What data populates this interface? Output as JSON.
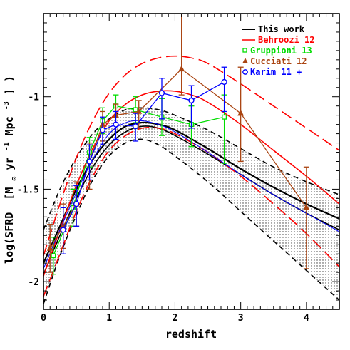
{
  "chart_data": {
    "type": "line",
    "title": "",
    "xlabel": "redshift",
    "ylabel_main": "log(SFRD",
    "ylabel_unit_open": "[M",
    "ylabel_unit_mid": "yr",
    "ylabel_unit_exp1": "-1",
    "ylabel_unit_mpc": " Mpc",
    "ylabel_unit_exp2": "-3",
    "ylabel_unit_close": "] )",
    "xlim": [
      0,
      4.5
    ],
    "ylim": [
      -2.15,
      -0.55
    ],
    "x_ticks": [
      0,
      1,
      2,
      3,
      4
    ],
    "x_tick_labels": [
      "0",
      "1",
      "2",
      "3",
      "4"
    ],
    "y_ticks": [
      -2,
      -1.5,
      -1
    ],
    "y_tick_labels": [
      "-2",
      "-1.5",
      "-1"
    ],
    "legend_position": "top-right",
    "legend": [
      {
        "label": "This work",
        "color": "#000000",
        "marker": "line"
      },
      {
        "label": "Behroozi 12",
        "color": "#ff0000",
        "marker": "dashed-line"
      },
      {
        "label": "Gruppioni 13",
        "color": "#00dd00",
        "marker": "square"
      },
      {
        "label": "Cucciati 12",
        "color": "#aa4411",
        "marker": "triangle"
      },
      {
        "label": "Karim 11 +",
        "color": "#0000ff",
        "marker": "circle"
      }
    ],
    "bands": {
      "this_work_upper": {
        "x": [
          0,
          0.25,
          0.5,
          0.75,
          1.0,
          1.25,
          1.5,
          1.75,
          2.0,
          2.5,
          3.0,
          3.5,
          4.0,
          4.5
        ],
        "y": [
          -1.72,
          -1.5,
          -1.33,
          -1.2,
          -1.12,
          -1.07,
          -1.06,
          -1.07,
          -1.1,
          -1.18,
          -1.28,
          -1.38,
          -1.46,
          -1.53
        ]
      },
      "this_work_lower": {
        "x": [
          0,
          0.25,
          0.5,
          0.75,
          1.0,
          1.25,
          1.5,
          1.75,
          2.0,
          2.5,
          3.0,
          3.5,
          4.0,
          4.5
        ],
        "y": [
          -2.12,
          -1.86,
          -1.64,
          -1.45,
          -1.32,
          -1.25,
          -1.23,
          -1.26,
          -1.32,
          -1.46,
          -1.62,
          -1.78,
          -1.94,
          -2.1
        ]
      }
    },
    "series": [
      {
        "style": "this_work_solid",
        "color": "#000000",
        "dash": "",
        "width": 2.2,
        "x": [
          0,
          0.25,
          0.5,
          0.75,
          1.0,
          1.25,
          1.5,
          1.75,
          2.0,
          2.5,
          3.0,
          3.5,
          4.0,
          4.5
        ],
        "y": [
          -1.9,
          -1.7,
          -1.5,
          -1.34,
          -1.23,
          -1.16,
          -1.14,
          -1.15,
          -1.18,
          -1.28,
          -1.39,
          -1.49,
          -1.58,
          -1.66
        ]
      },
      {
        "style": "this_work_lower_solid",
        "color": "#000000",
        "dash": "",
        "width": 1.6,
        "x": [
          0,
          0.25,
          0.5,
          0.75,
          1.0,
          1.25,
          1.5,
          1.75,
          2.0,
          2.5,
          3.0,
          3.5,
          4.0,
          4.5
        ],
        "y": [
          -1.96,
          -1.75,
          -1.55,
          -1.38,
          -1.26,
          -1.19,
          -1.16,
          -1.17,
          -1.21,
          -1.31,
          -1.42,
          -1.53,
          -1.63,
          -1.72
        ]
      },
      {
        "style": "this_work_upper_dashed",
        "color": "#000000",
        "dash": "7,5",
        "width": 1.6,
        "x": [
          0,
          0.25,
          0.5,
          0.75,
          1.0,
          1.25,
          1.5,
          1.75,
          2.0,
          2.5,
          3.0,
          3.5,
          4.0,
          4.5
        ],
        "y": [
          -1.72,
          -1.5,
          -1.33,
          -1.2,
          -1.12,
          -1.07,
          -1.06,
          -1.07,
          -1.1,
          -1.18,
          -1.28,
          -1.38,
          -1.46,
          -1.53
        ]
      },
      {
        "style": "this_work_lower_dashed",
        "color": "#000000",
        "dash": "7,5",
        "width": 1.6,
        "x": [
          0,
          0.25,
          0.5,
          0.75,
          1.0,
          1.25,
          1.5,
          1.75,
          2.0,
          2.5,
          3.0,
          3.5,
          4.0,
          4.5
        ],
        "y": [
          -2.12,
          -1.86,
          -1.64,
          -1.45,
          -1.32,
          -1.25,
          -1.23,
          -1.26,
          -1.32,
          -1.46,
          -1.62,
          -1.78,
          -1.94,
          -2.1
        ]
      },
      {
        "style": "behroozi_best",
        "color": "#ff0000",
        "dash": "",
        "width": 1.6,
        "x": [
          0,
          0.25,
          0.5,
          0.75,
          1.0,
          1.25,
          1.5,
          1.75,
          2.0,
          2.25,
          2.5,
          3.0,
          3.5,
          4.0,
          4.5
        ],
        "y": [
          -1.97,
          -1.72,
          -1.48,
          -1.28,
          -1.13,
          -1.04,
          -0.99,
          -0.97,
          -0.97,
          -0.99,
          -1.03,
          -1.15,
          -1.29,
          -1.43,
          -1.58
        ]
      },
      {
        "style": "behroozi_upper",
        "color": "#ff0000",
        "dash": "16,7",
        "width": 1.6,
        "x": [
          0,
          0.25,
          0.5,
          0.75,
          1.0,
          1.25,
          1.5,
          1.75,
          2.0,
          2.25,
          2.5,
          3.0,
          3.5,
          4.0,
          4.5
        ],
        "y": [
          -1.86,
          -1.58,
          -1.33,
          -1.13,
          -0.98,
          -0.88,
          -0.82,
          -0.79,
          -0.78,
          -0.79,
          -0.82,
          -0.93,
          -1.05,
          -1.17,
          -1.29
        ]
      },
      {
        "style": "behroozi_lower",
        "color": "#ff0000",
        "dash": "16,7",
        "width": 1.6,
        "x": [
          0,
          0.25,
          0.5,
          0.75,
          1.0,
          1.25,
          1.5,
          1.75,
          2.0,
          2.5,
          3.0,
          3.5,
          4.0,
          4.5
        ],
        "y": [
          -2.08,
          -1.85,
          -1.62,
          -1.43,
          -1.29,
          -1.21,
          -1.17,
          -1.17,
          -1.2,
          -1.3,
          -1.43,
          -1.58,
          -1.74,
          -1.92
        ]
      },
      {
        "style": "karim_fit",
        "color": "#0000ff",
        "dash": "",
        "width": 1.0,
        "x": [
          0,
          0.25,
          0.5,
          0.75,
          1.0,
          1.25,
          1.5,
          1.75,
          2.0,
          2.5,
          3.0,
          3.5,
          4.0,
          4.5
        ],
        "y": [
          -1.93,
          -1.72,
          -1.52,
          -1.34,
          -1.2,
          -1.14,
          -1.13,
          -1.15,
          -1.19,
          -1.3,
          -1.42,
          -1.53,
          -1.63,
          -1.73
        ]
      }
    ],
    "points": [
      {
        "name": "Gruppioni 13",
        "color": "#00dd00",
        "marker": "square",
        "connect": true,
        "x": [
          0.15,
          0.45,
          0.7,
          0.9,
          1.1,
          1.4,
          1.8,
          2.25,
          2.75
        ],
        "y": [
          -1.86,
          -1.6,
          -1.3,
          -1.13,
          -1.05,
          -1.07,
          -1.11,
          -1.15,
          -1.11
        ],
        "yerr_lo": [
          0.1,
          0.1,
          0.08,
          0.07,
          0.06,
          0.07,
          0.1,
          0.12,
          0.25
        ],
        "yerr_hi": [
          0.1,
          0.1,
          0.08,
          0.07,
          0.06,
          0.07,
          0.1,
          0.1,
          0.12
        ]
      },
      {
        "name": "Cucciati 12",
        "color": "#aa4411",
        "marker": "triangle",
        "connect": true,
        "x": [
          0.1,
          0.3,
          0.5,
          0.7,
          0.9,
          1.1,
          1.45,
          2.1,
          3.0,
          4.0
        ],
        "y": [
          -1.82,
          -1.7,
          -1.58,
          -1.35,
          -1.15,
          -1.1,
          -1.08,
          -0.85,
          -1.09,
          -1.6
        ],
        "yerr_lo": [
          0.13,
          0.12,
          0.12,
          0.15,
          0.09,
          0.08,
          0.09,
          0.14,
          0.26,
          0.33
        ],
        "yerr_hi": [
          0.13,
          0.12,
          0.12,
          0.1,
          0.07,
          0.06,
          0.06,
          0.3,
          0.25,
          0.22
        ]
      },
      {
        "name": "Karim 11 +",
        "color": "#0000ff",
        "marker": "circle",
        "connect": true,
        "x": [
          0.3,
          0.5,
          0.7,
          0.9,
          1.1,
          1.4,
          1.8,
          2.25,
          2.75
        ],
        "y": [
          -1.72,
          -1.58,
          -1.35,
          -1.18,
          -1.15,
          -1.16,
          -0.98,
          -1.02,
          -0.92
        ],
        "yerr_lo": [
          0.13,
          0.12,
          0.1,
          0.08,
          0.08,
          0.08,
          0.14,
          0.15,
          0.16
        ],
        "yerr_hi": [
          0.12,
          0.1,
          0.09,
          0.07,
          0.07,
          0.07,
          0.08,
          0.08,
          0.08
        ]
      }
    ]
  }
}
